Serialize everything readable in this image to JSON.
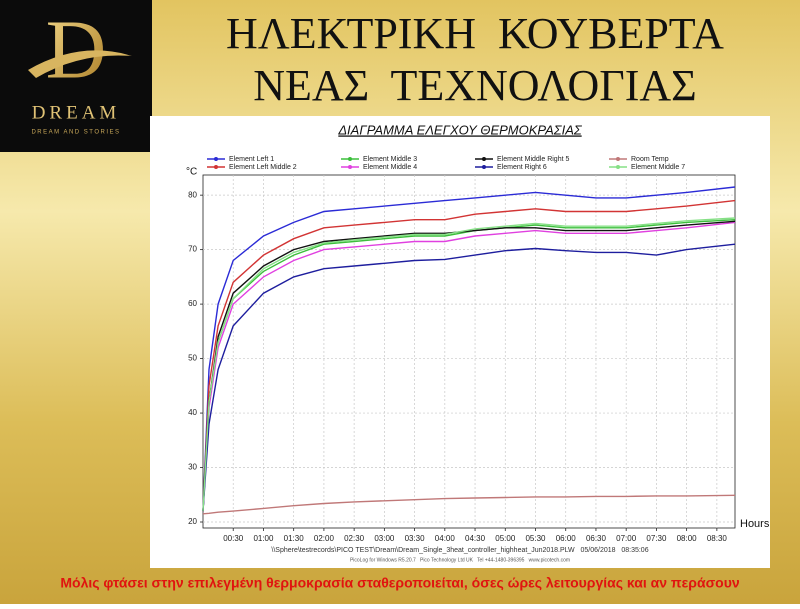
{
  "logo": {
    "brand": "DREAM",
    "tagline": "DREAM AND STORIES"
  },
  "header": {
    "title_lines": [
      "ΗΛΕΚΤΡΙΚΗ  ΚΟΥΒΕΡΤΑ",
      "ΝΕΑΣ  ΤΕΧΝΟΛΟΓΙΑΣ"
    ]
  },
  "chart_data": {
    "type": "line",
    "title": "ΔΙΑΓΡΑΜΜΑ ΕΛΕΓΧΟΥ ΘΕΡΜΟΚΡΑΣΙΑΣ",
    "y_unit": "°C",
    "xlabel": "Hours",
    "source_lines": [
      "\\\\Sphere\\testrecords\\PICO TEST\\Dream\\Dream_Single_3heat_controller_highheat_Jun2018.PLW   05/06/2018   08:35:06",
      "PicoLog for Windows R5.20.7   Pico Technology Ltd UK   Tel +44-1480-396395   www.picotech.com"
    ],
    "x": [
      0,
      0.1,
      0.25,
      0.5,
      1,
      1.5,
      2,
      2.5,
      3,
      3.5,
      4,
      4.5,
      5,
      5.5,
      6,
      6.5,
      7,
      7.5,
      8,
      8.8
    ],
    "series": [
      {
        "name": "Element Left 1",
        "color": "#2b2bd6",
        "values": [
          22,
          48,
          60,
          68,
          72.5,
          75,
          77,
          77.5,
          78,
          78.5,
          79,
          79.5,
          80,
          80.5,
          80,
          79.5,
          79.5,
          80,
          80.5,
          81.5
        ]
      },
      {
        "name": "Element Left Middle 2",
        "color": "#d23434",
        "values": [
          22,
          45,
          56,
          64,
          69,
          72,
          74,
          74.5,
          75,
          75.5,
          75.5,
          76.5,
          77,
          77.5,
          77,
          77,
          77,
          77.5,
          78,
          79
        ]
      },
      {
        "name": "Element Middle 3",
        "color": "#3cbf3c",
        "values": [
          22,
          42,
          53,
          61,
          66,
          69,
          71,
          71.5,
          72,
          72.5,
          72.5,
          73.5,
          74,
          74.5,
          74,
          74,
          74,
          74.5,
          75,
          75.5
        ]
      },
      {
        "name": "Element Middle 4",
        "color": "#e040e0",
        "values": [
          22,
          41,
          52,
          60,
          65,
          68,
          70,
          70.5,
          71,
          71.5,
          71.5,
          72.5,
          73,
          73.5,
          73,
          73,
          73,
          73.5,
          74,
          75
        ]
      },
      {
        "name": "Element Middle Right 5",
        "color": "#111111",
        "values": [
          22,
          42,
          54,
          62,
          67,
          70,
          71.5,
          72,
          72.5,
          73,
          73,
          73.5,
          74,
          74,
          73.5,
          73.5,
          73.5,
          74,
          74.5,
          75.2
        ]
      },
      {
        "name": "Element Right 6",
        "color": "#1e1e9e",
        "values": [
          22,
          38,
          48,
          56,
          62,
          65,
          66.5,
          67,
          67.5,
          68,
          68.2,
          69,
          69.8,
          70.2,
          69.8,
          69.5,
          69.5,
          69,
          70,
          71
        ]
      },
      {
        "name": "Room Temp",
        "color": "#c07878",
        "values": [
          21.5,
          21.6,
          21.8,
          22,
          22.5,
          23,
          23.4,
          23.7,
          23.9,
          24.1,
          24.3,
          24.4,
          24.5,
          24.6,
          24.6,
          24.7,
          24.7,
          24.8,
          24.8,
          24.9
        ]
      },
      {
        "name": "Element Middle 7",
        "color": "#86e086",
        "values": [
          22,
          42,
          53,
          61,
          66.5,
          69.5,
          71.2,
          71.8,
          72.3,
          72.8,
          72.8,
          73.8,
          74.3,
          74.8,
          74.3,
          74.3,
          74.3,
          74.8,
          75.3,
          75.8
        ]
      }
    ],
    "xlim": [
      0,
      8.8
    ],
    "ylim": [
      18.9,
      83.7
    ],
    "xticks": [
      {
        "value": 0.5,
        "label": "00:30"
      },
      {
        "value": 1,
        "label": "01:00"
      },
      {
        "value": 1.5,
        "label": "01:30"
      },
      {
        "value": 2,
        "label": "02:00"
      },
      {
        "value": 2.5,
        "label": "02:30"
      },
      {
        "value": 3,
        "label": "03:00"
      },
      {
        "value": 3.5,
        "label": "03:30"
      },
      {
        "value": 4,
        "label": "04:00"
      },
      {
        "value": 4.5,
        "label": "04:30"
      },
      {
        "value": 5,
        "label": "05:00"
      },
      {
        "value": 5.5,
        "label": "05:30"
      },
      {
        "value": 6,
        "label": "06:00"
      },
      {
        "value": 6.5,
        "label": "06:30"
      },
      {
        "value": 7,
        "label": "07:00"
      },
      {
        "value": 7.5,
        "label": "07:30"
      },
      {
        "value": 8,
        "label": "08:00"
      },
      {
        "value": 8.5,
        "label": "08:30"
      }
    ],
    "yticks": [
      20,
      30,
      40,
      50,
      60,
      70,
      80
    ],
    "grid": true
  },
  "footer": {
    "caption": "Μόλις φτάσει στην επιλεγμένη θερμοκρασία σταθεροποιείται, όσες ώρες λειτουργίας και αν περάσουν"
  }
}
